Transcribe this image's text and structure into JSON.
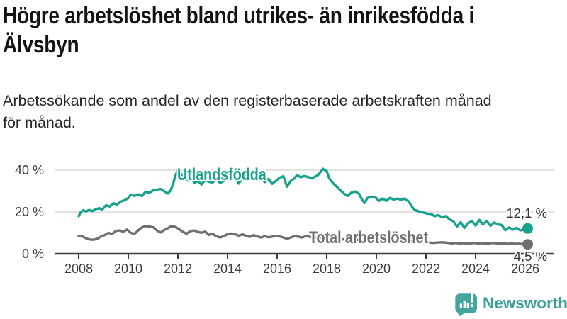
{
  "title": "Högre arbetslöshet bland utrikes- än inrikesfödda i Älvsbyn",
  "title_lines": [
    "Högre arbetslöshet bland utrikes- än inrikesfödda i",
    "Älvsbyn"
  ],
  "subtitle": "Arbetssökande som andel av den registerbaserade arbetskraften månad för månad.",
  "subtitle_lines": [
    "Arbetssökande som andel av den registerbaserade arbetskraften månad",
    "för månad."
  ],
  "footer": {
    "brand": "Newsworthy",
    "logo_icon": "bar-chart-speech-bubble-icon",
    "brand_color": "#3aa09c",
    "bubble_color": "#44a4a0"
  },
  "chart_data": {
    "type": "line",
    "title": "",
    "xlabel": "",
    "ylabel": "",
    "grid": true,
    "legend_position": "inline-labels",
    "xlim": [
      2006.9,
      2027.2
    ],
    "ylim": [
      0,
      44
    ],
    "axis_color": "#3c3c3c",
    "grid_color": "#d8d8d8",
    "x_ticks": [
      {
        "value": 2008,
        "label": "2008"
      },
      {
        "value": 2010,
        "label": "2010"
      },
      {
        "value": 2012,
        "label": "2012"
      },
      {
        "value": 2014,
        "label": "2014"
      },
      {
        "value": 2016,
        "label": "2016"
      },
      {
        "value": 2018,
        "label": "2018"
      },
      {
        "value": 2020,
        "label": "2020"
      },
      {
        "value": 2022,
        "label": "2022"
      },
      {
        "value": 2024,
        "label": "2024"
      },
      {
        "value": 2026,
        "label": "2026"
      }
    ],
    "y_ticks": [
      {
        "value": 0,
        "label": "0 %"
      },
      {
        "value": 20,
        "label": "20 %"
      },
      {
        "value": 40,
        "label": "40 %"
      }
    ],
    "series": [
      {
        "name": "Utlandsfödda",
        "color": "#17a28e",
        "end_label": "12,1 %",
        "end_value": 12.1,
        "points": [
          [
            2008.0,
            18.0
          ],
          [
            2008.08,
            19.8
          ],
          [
            2008.17,
            20.8
          ],
          [
            2008.3,
            20.2
          ],
          [
            2008.42,
            21.0
          ],
          [
            2008.55,
            20.4
          ],
          [
            2008.7,
            21.4
          ],
          [
            2008.83,
            21.8
          ],
          [
            2008.95,
            21.2
          ],
          [
            2009.1,
            23.2
          ],
          [
            2009.25,
            22.6
          ],
          [
            2009.4,
            24.2
          ],
          [
            2009.55,
            23.6
          ],
          [
            2009.7,
            25.0
          ],
          [
            2009.85,
            25.6
          ],
          [
            2010.0,
            26.6
          ],
          [
            2010.1,
            28.3
          ],
          [
            2010.25,
            27.7
          ],
          [
            2010.4,
            28.4
          ],
          [
            2010.55,
            27.6
          ],
          [
            2010.7,
            29.7
          ],
          [
            2010.85,
            29.2
          ],
          [
            2011.0,
            30.3
          ],
          [
            2011.15,
            30.7
          ],
          [
            2011.3,
            31.0
          ],
          [
            2011.45,
            29.9
          ],
          [
            2011.6,
            28.8
          ],
          [
            2011.7,
            30.2
          ],
          [
            2011.8,
            33.0
          ],
          [
            2011.9,
            37.5
          ],
          [
            2012.0,
            40.2
          ],
          [
            2012.1,
            38.8
          ],
          [
            2012.2,
            36.1
          ],
          [
            2012.3,
            36.7
          ],
          [
            2012.42,
            34.9
          ],
          [
            2012.55,
            36.1
          ],
          [
            2012.68,
            33.8
          ],
          [
            2012.8,
            34.9
          ],
          [
            2012.95,
            33.2
          ],
          [
            2013.1,
            35.3
          ],
          [
            2013.25,
            34.4
          ],
          [
            2013.4,
            34.1
          ],
          [
            2013.55,
            35.9
          ],
          [
            2013.7,
            33.9
          ],
          [
            2013.85,
            34.8
          ],
          [
            2014.0,
            36.4
          ],
          [
            2014.15,
            35.4
          ],
          [
            2014.3,
            37.0
          ],
          [
            2014.45,
            33.6
          ],
          [
            2014.6,
            36.2
          ],
          [
            2014.75,
            37.5
          ],
          [
            2014.9,
            36.5
          ],
          [
            2015.05,
            37.0
          ],
          [
            2015.2,
            35.5
          ],
          [
            2015.35,
            36.3
          ],
          [
            2015.5,
            34.3
          ],
          [
            2015.65,
            35.8
          ],
          [
            2015.8,
            33.5
          ],
          [
            2015.95,
            34.8
          ],
          [
            2016.1,
            36.4
          ],
          [
            2016.25,
            37.1
          ],
          [
            2016.4,
            32.1
          ],
          [
            2016.55,
            34.8
          ],
          [
            2016.7,
            36.1
          ],
          [
            2016.8,
            37.7
          ],
          [
            2016.95,
            36.6
          ],
          [
            2017.1,
            37.2
          ],
          [
            2017.25,
            36.7
          ],
          [
            2017.4,
            36.0
          ],
          [
            2017.55,
            37.0
          ],
          [
            2017.65,
            37.7
          ],
          [
            2017.85,
            40.6
          ],
          [
            2018.0,
            39.5
          ],
          [
            2018.1,
            36.1
          ],
          [
            2018.25,
            33.8
          ],
          [
            2018.4,
            32.1
          ],
          [
            2018.55,
            30.4
          ],
          [
            2018.7,
            28.7
          ],
          [
            2018.85,
            27.7
          ],
          [
            2019.0,
            29.3
          ],
          [
            2019.15,
            29.8
          ],
          [
            2019.3,
            28.7
          ],
          [
            2019.42,
            26.0
          ],
          [
            2019.52,
            24.3
          ],
          [
            2019.65,
            26.8
          ],
          [
            2019.8,
            27.1
          ],
          [
            2019.95,
            27.2
          ],
          [
            2020.1,
            25.3
          ],
          [
            2020.25,
            26.4
          ],
          [
            2020.4,
            25.3
          ],
          [
            2020.55,
            26.7
          ],
          [
            2020.7,
            25.9
          ],
          [
            2020.85,
            26.4
          ],
          [
            2021.0,
            25.8
          ],
          [
            2021.1,
            26.4
          ],
          [
            2021.3,
            25.1
          ],
          [
            2021.45,
            22.3
          ],
          [
            2021.55,
            21.0
          ],
          [
            2021.7,
            20.3
          ],
          [
            2021.9,
            19.7
          ],
          [
            2022.05,
            19.2
          ],
          [
            2022.2,
            19.1
          ],
          [
            2022.35,
            18.0
          ],
          [
            2022.5,
            18.5
          ],
          [
            2022.65,
            17.4
          ],
          [
            2022.8,
            18.0
          ],
          [
            2022.95,
            16.4
          ],
          [
            2023.1,
            15.6
          ],
          [
            2023.25,
            13.0
          ],
          [
            2023.4,
            15.1
          ],
          [
            2023.55,
            12.4
          ],
          [
            2023.7,
            14.6
          ],
          [
            2023.85,
            15.7
          ],
          [
            2024.0,
            13.5
          ],
          [
            2024.15,
            16.2
          ],
          [
            2024.3,
            14.0
          ],
          [
            2024.45,
            15.7
          ],
          [
            2024.6,
            13.4
          ],
          [
            2024.75,
            15.0
          ],
          [
            2024.9,
            14.0
          ],
          [
            2025.05,
            13.8
          ],
          [
            2025.2,
            11.3
          ],
          [
            2025.35,
            12.6
          ],
          [
            2025.5,
            11.6
          ],
          [
            2025.65,
            12.4
          ],
          [
            2025.8,
            11.2
          ],
          [
            2025.95,
            11.5
          ],
          [
            2026.1,
            12.1
          ]
        ]
      },
      {
        "name": "Total arbetslöshet",
        "color": "#6f6f6f",
        "end_label": "4,5 %",
        "end_value": 4.5,
        "points": [
          [
            2008.0,
            8.6
          ],
          [
            2008.15,
            8.3
          ],
          [
            2008.3,
            7.4
          ],
          [
            2008.45,
            6.8
          ],
          [
            2008.6,
            6.7
          ],
          [
            2008.75,
            7.2
          ],
          [
            2008.9,
            8.3
          ],
          [
            2009.05,
            8.9
          ],
          [
            2009.2,
            10.0
          ],
          [
            2009.35,
            9.5
          ],
          [
            2009.5,
            10.9
          ],
          [
            2009.65,
            11.2
          ],
          [
            2009.8,
            10.6
          ],
          [
            2009.95,
            11.6
          ],
          [
            2010.1,
            10.0
          ],
          [
            2010.25,
            9.6
          ],
          [
            2010.4,
            11.2
          ],
          [
            2010.55,
            12.6
          ],
          [
            2010.7,
            13.3
          ],
          [
            2010.85,
            13.0
          ],
          [
            2011.0,
            12.7
          ],
          [
            2011.15,
            11.2
          ],
          [
            2011.3,
            10.2
          ],
          [
            2011.45,
            11.4
          ],
          [
            2011.6,
            12.3
          ],
          [
            2011.75,
            13.3
          ],
          [
            2011.9,
            12.8
          ],
          [
            2012.05,
            11.8
          ],
          [
            2012.2,
            10.5
          ],
          [
            2012.35,
            9.6
          ],
          [
            2012.5,
            10.8
          ],
          [
            2012.65,
            11.2
          ],
          [
            2012.8,
            10.4
          ],
          [
            2012.95,
            10.1
          ],
          [
            2013.1,
            10.6
          ],
          [
            2013.25,
            9.0
          ],
          [
            2013.4,
            9.5
          ],
          [
            2013.55,
            8.4
          ],
          [
            2013.7,
            7.8
          ],
          [
            2013.85,
            8.4
          ],
          [
            2014.0,
            9.4
          ],
          [
            2014.15,
            9.7
          ],
          [
            2014.3,
            9.4
          ],
          [
            2014.45,
            8.6
          ],
          [
            2014.6,
            9.3
          ],
          [
            2014.75,
            8.6
          ],
          [
            2014.9,
            8.1
          ],
          [
            2015.05,
            8.9
          ],
          [
            2015.2,
            8.3
          ],
          [
            2015.35,
            7.8
          ],
          [
            2015.5,
            8.4
          ],
          [
            2015.65,
            7.9
          ],
          [
            2015.8,
            8.2
          ],
          [
            2015.95,
            8.6
          ],
          [
            2016.1,
            8.3
          ],
          [
            2016.25,
            7.8
          ],
          [
            2016.4,
            7.2
          ],
          [
            2016.55,
            7.8
          ],
          [
            2016.7,
            8.4
          ],
          [
            2016.85,
            8.2
          ],
          [
            2017.0,
            7.8
          ],
          [
            2017.15,
            8.4
          ],
          [
            2017.3,
            8.2
          ],
          [
            2017.5,
            7.6
          ],
          [
            2017.7,
            7.9
          ],
          [
            2017.9,
            7.6
          ],
          [
            2018.1,
            7.2
          ],
          [
            2018.3,
            6.8
          ],
          [
            2018.5,
            6.6
          ],
          [
            2018.7,
            7.0
          ],
          [
            2018.9,
            7.3
          ],
          [
            2019.1,
            7.0
          ],
          [
            2019.3,
            6.6
          ],
          [
            2019.5,
            6.3
          ],
          [
            2019.7,
            6.6
          ],
          [
            2019.9,
            7.0
          ],
          [
            2020.1,
            7.3
          ],
          [
            2020.3,
            7.7
          ],
          [
            2020.5,
            7.4
          ],
          [
            2020.7,
            7.1
          ],
          [
            2020.9,
            6.8
          ],
          [
            2021.1,
            6.6
          ],
          [
            2021.3,
            6.3
          ],
          [
            2021.5,
            6.0
          ],
          [
            2021.7,
            5.7
          ],
          [
            2021.9,
            5.5
          ],
          [
            2022.1,
            5.4
          ],
          [
            2022.3,
            5.2
          ],
          [
            2022.5,
            5.4
          ],
          [
            2022.7,
            5.5
          ],
          [
            2022.9,
            5.2
          ],
          [
            2023.05,
            5.0
          ],
          [
            2023.2,
            5.2
          ],
          [
            2023.35,
            4.9
          ],
          [
            2023.5,
            5.1
          ],
          [
            2023.65,
            4.8
          ],
          [
            2023.8,
            5.0
          ],
          [
            2023.95,
            5.2
          ],
          [
            2024.1,
            4.9
          ],
          [
            2024.25,
            5.1
          ],
          [
            2024.4,
            4.8
          ],
          [
            2024.55,
            5.0
          ],
          [
            2024.7,
            5.2
          ],
          [
            2024.85,
            5.0
          ],
          [
            2025.0,
            4.8
          ],
          [
            2025.15,
            5.0
          ],
          [
            2025.3,
            4.7
          ],
          [
            2025.45,
            4.9
          ],
          [
            2025.6,
            4.7
          ],
          [
            2025.75,
            4.8
          ],
          [
            2025.9,
            4.6
          ],
          [
            2026.1,
            4.5
          ]
        ]
      }
    ]
  }
}
